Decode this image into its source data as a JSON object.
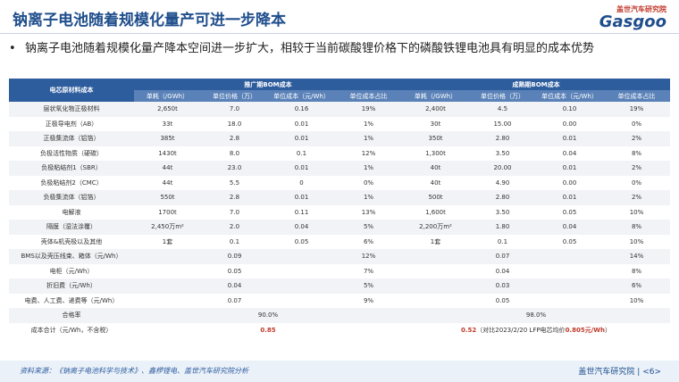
{
  "header": {
    "title": "钠离子电池随着规模化量产可进一步降本",
    "logo_cn": "盖世汽车研究院",
    "logo_en": "Gasgoo"
  },
  "bullet": "钠离子电池随着规模化量产降本空间进一步扩大，相较于当前碳酸锂价格下的磷酸铁锂电池具有明显的成本优势",
  "table": {
    "corner": "电芯原材料成本",
    "groups": [
      "推广期BOM成本",
      "成熟期BOM成本"
    ],
    "columns": [
      "单耗（/GWh）",
      "单位价格（万）",
      "单位成本（元/Wh）",
      "单位成本占比",
      "单耗（/GWh）",
      "单位价格（万）",
      "单位成本（元/Wh）",
      "单位成本占比"
    ],
    "rows": [
      [
        "层状氧化物正极材料",
        "2,650t",
        "7.0",
        "0.16",
        "19%",
        "2,400t",
        "4.5",
        "0.10",
        "19%"
      ],
      [
        "正极导电剂（AB）",
        "33t",
        "18.0",
        "0.01",
        "1%",
        "30t",
        "15.00",
        "0.00",
        "0%"
      ],
      [
        "正极集流体（铝箔）",
        "385t",
        "2.8",
        "0.01",
        "1%",
        "350t",
        "2.80",
        "0.01",
        "2%"
      ],
      [
        "负极活性物质（硬碳）",
        "1430t",
        "8.0",
        "0.1",
        "12%",
        "1,300t",
        "3.50",
        "0.04",
        "8%"
      ],
      [
        "负极粘结剂1（SBR）",
        "44t",
        "23.0",
        "0.01",
        "1%",
        "40t",
        "20.00",
        "0.01",
        "2%"
      ],
      [
        "负极粘结剂2（CMC）",
        "44t",
        "5.5",
        "0",
        "0%",
        "40t",
        "4.90",
        "0.00",
        "0%"
      ],
      [
        "负极集流体（铝箔）",
        "550t",
        "2.8",
        "0.01",
        "1%",
        "500t",
        "2.80",
        "0.01",
        "2%"
      ],
      [
        "电解液",
        "1700t",
        "7.0",
        "0.11",
        "13%",
        "1,600t",
        "3.50",
        "0.05",
        "10%"
      ],
      [
        "隔膜（湿法涂覆）",
        "2,450万m²",
        "2.0",
        "0.04",
        "5%",
        "2,200万m²",
        "1.80",
        "0.04",
        "8%"
      ],
      [
        "壳体&机壳极以及其他",
        "1套",
        "0.1",
        "0.05",
        "6%",
        "1套",
        "0.1",
        "0.05",
        "10%"
      ],
      [
        "BMS以及壳压线束、箱体（元/Wh）",
        "0.09",
        "12%",
        "0.07",
        "14%"
      ],
      [
        "电柜（元/Wh）",
        "0.05",
        "7%",
        "0.04",
        "8%"
      ],
      [
        "折旧费（元/Wh）",
        "0.04",
        "5%",
        "0.03",
        "6%"
      ],
      [
        "电费、人工费、递费等（元/Wh）",
        "0.07",
        "9%",
        "0.05",
        "10%"
      ],
      [
        "合格率",
        "90.0%",
        "98.0%"
      ]
    ],
    "total": {
      "label": "成本合计（元/Wh，不含税）",
      "promo": "0.85",
      "mature": "0.52",
      "note_prefix": "（对比2023/2/20 LFP电芯均价",
      "note_value": "0.805元/Wh",
      "note_suffix": "）"
    }
  },
  "footer": {
    "source": "资料来源：《钠离子电池科学与技术》、鑫椤锂电、盖世汽车研究院分析",
    "brand": "盖世汽车研究院",
    "page": "<6>"
  }
}
